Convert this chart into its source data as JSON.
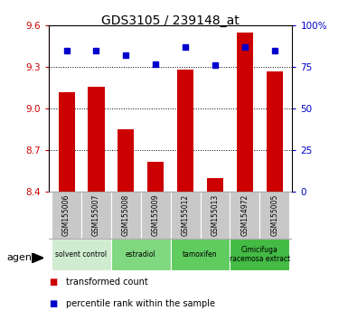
{
  "title": "GDS3105 / 239148_at",
  "samples": [
    "GSM155006",
    "GSM155007",
    "GSM155008",
    "GSM155009",
    "GSM155012",
    "GSM155013",
    "GSM154972",
    "GSM155005"
  ],
  "red_values": [
    9.12,
    9.16,
    8.85,
    8.62,
    9.28,
    8.5,
    9.55,
    9.27
  ],
  "blue_values": [
    85,
    85,
    82,
    77,
    87,
    76,
    87,
    85
  ],
  "ylim_left": [
    8.4,
    9.6
  ],
  "ylim_right": [
    0,
    100
  ],
  "yticks_left": [
    8.4,
    8.7,
    9.0,
    9.3,
    9.6
  ],
  "yticks_right": [
    0,
    25,
    50,
    75,
    100
  ],
  "ytick_labels_right": [
    "0",
    "25",
    "50",
    "75",
    "100%"
  ],
  "groups": [
    {
      "label": "solvent control",
      "indices": [
        0,
        1
      ],
      "color": "#d0ecd0"
    },
    {
      "label": "estradiol",
      "indices": [
        2,
        3
      ],
      "color": "#80d880"
    },
    {
      "label": "tamoxifen",
      "indices": [
        4,
        5
      ],
      "color": "#60cc60"
    },
    {
      "label": "Cimicifuga\nracemosa extract",
      "indices": [
        6,
        7
      ],
      "color": "#44bb44"
    }
  ],
  "bar_color": "#cc0000",
  "dot_color": "#0000cc",
  "bar_width": 0.55,
  "grid_color": "#000000",
  "plot_bg": "#ffffff",
  "xlabel_color": "#cc0000",
  "ylabel_right_color": "#0000cc",
  "legend_red": "transformed count",
  "legend_blue": "percentile rank within the sample",
  "agent_label": "agent"
}
